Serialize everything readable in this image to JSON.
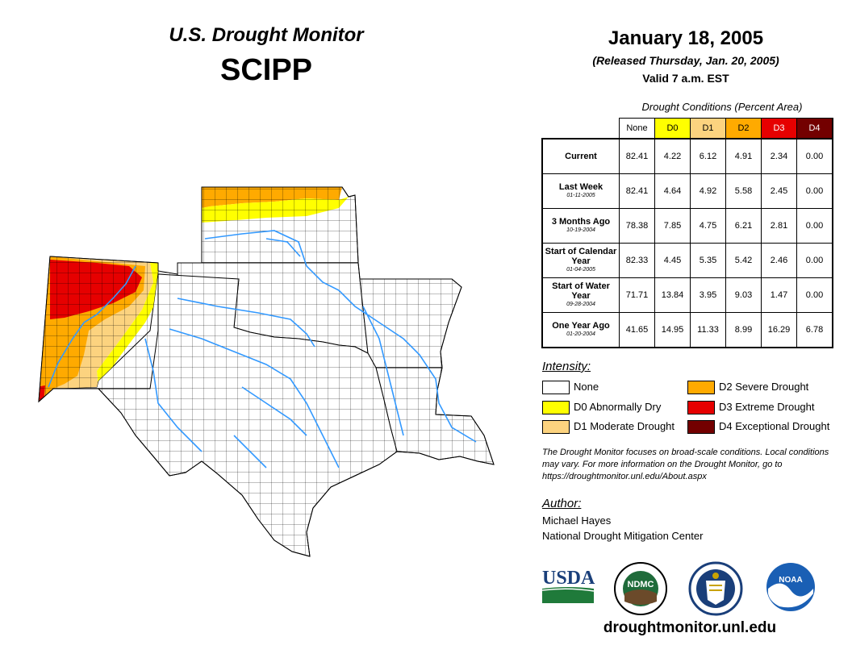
{
  "header": {
    "title": "U.S. Drought Monitor",
    "region": "SCIPP",
    "date": "January 18, 2005",
    "released": "(Released Thursday, Jan. 20, 2005)",
    "valid": "Valid 7 a.m. EST"
  },
  "table": {
    "caption": "Drought Conditions (Percent Area)",
    "columns": [
      "None",
      "D0",
      "D1",
      "D2",
      "D3",
      "D4"
    ],
    "column_colors": [
      "#ffffff",
      "#ffff00",
      "#fcd37f",
      "#ffaa00",
      "#e60000",
      "#730000"
    ],
    "rows": [
      {
        "label": "Current",
        "date": "",
        "values": [
          "82.41",
          "4.22",
          "6.12",
          "4.91",
          "2.34",
          "0.00"
        ]
      },
      {
        "label": "Last Week",
        "date": "01-11-2005",
        "values": [
          "82.41",
          "4.64",
          "4.92",
          "5.58",
          "2.45",
          "0.00"
        ]
      },
      {
        "label": "3 Months Ago",
        "date": "10-19-2004",
        "values": [
          "78.38",
          "7.85",
          "4.75",
          "6.21",
          "2.81",
          "0.00"
        ]
      },
      {
        "label": "Start of Calendar Year",
        "date": "01-04-2005",
        "values": [
          "82.33",
          "4.45",
          "5.35",
          "5.42",
          "2.46",
          "0.00"
        ]
      },
      {
        "label": "Start of Water Year",
        "date": "09-28-2004",
        "values": [
          "71.71",
          "13.84",
          "3.95",
          "9.03",
          "1.47",
          "0.00"
        ]
      },
      {
        "label": "One Year Ago",
        "date": "01-20-2004",
        "values": [
          "41.65",
          "14.95",
          "11.33",
          "8.99",
          "16.29",
          "6.78"
        ]
      }
    ]
  },
  "legend": {
    "title": "Intensity:",
    "items": [
      {
        "label": "None",
        "color": "#ffffff"
      },
      {
        "label": "D0 Abnormally Dry",
        "color": "#ffff00"
      },
      {
        "label": "D1 Moderate Drought",
        "color": "#fcd37f"
      },
      {
        "label": "D2 Severe Drought",
        "color": "#ffaa00"
      },
      {
        "label": "D3 Extreme Drought",
        "color": "#e60000"
      },
      {
        "label": "D4 Exceptional Drought",
        "color": "#730000"
      }
    ]
  },
  "note": "The Drought Monitor focuses on broad-scale conditions. Local conditions may vary. For more information on the Drought Monitor, go to https://droughtmonitor.unl.edu/About.aspx",
  "author": {
    "title": "Author:",
    "name": "Michael Hayes",
    "org": "National Drought Mitigation Center"
  },
  "logos": {
    "usda": "USDA",
    "ndmc": "NDMC",
    "noaa": "NOAA"
  },
  "website": "droughtmonitor.unl.edu",
  "map": {
    "river_color": "#3399ff"
  }
}
